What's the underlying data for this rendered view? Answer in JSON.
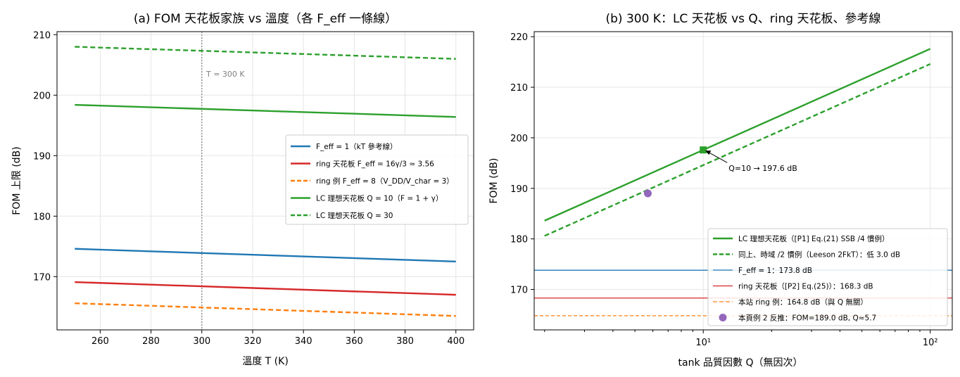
{
  "chart_data": [
    {
      "type": "line",
      "title": "(a) FOM 天花板家族 vs 溫度（各 F_eff 一條線）",
      "xlabel": "溫度 T (K)",
      "ylabel": "FOM 上限 (dB)",
      "xlim": [
        243,
        407
      ],
      "ylim": [
        161.2,
        210.5
      ],
      "xticks": [
        260,
        280,
        300,
        320,
        340,
        360,
        380,
        400
      ],
      "yticks": [
        170,
        180,
        190,
        200,
        210
      ],
      "grid": true,
      "legend_position": "center-right",
      "vline": {
        "x": 300,
        "label": "T = 300 K",
        "color": "#808080"
      },
      "series": [
        {
          "name": "F_eff = 1（kT 參考線）",
          "color": "#1f77b4",
          "style": "solid",
          "x": [
            250,
            400
          ],
          "y": [
            174.6,
            172.5
          ]
        },
        {
          "name": "ring 天花板 F_eff = 16γ/3 ≈ 3.56",
          "color": "#d62728",
          "style": "solid",
          "x": [
            250,
            400
          ],
          "y": [
            169.1,
            167.0
          ]
        },
        {
          "name": "ring 例 F_eff = 8（V_DD/V_char = 3）",
          "color": "#ff7f0e",
          "style": "dashed",
          "x": [
            250,
            400
          ],
          "y": [
            165.6,
            163.5
          ]
        },
        {
          "name": "LC 理想天花板 Q = 10（F = 1 + γ）",
          "color": "#2ca02c",
          "style": "solid",
          "x": [
            250,
            400
          ],
          "y": [
            198.4,
            196.4
          ]
        },
        {
          "name": "LC 理想天花板 Q = 30",
          "color": "#2ca02c",
          "style": "dashed",
          "x": [
            250,
            400
          ],
          "y": [
            208.0,
            206.0
          ]
        }
      ]
    },
    {
      "type": "line",
      "title": "(b) 300 K：LC 天花板 vs Q、ring 天花板、參考線",
      "xlabel": "tank 品質因數 Q（無因次）",
      "ylabel": "FOM (dB)",
      "xscale": "log",
      "xlim": [
        1.8,
        125
      ],
      "ylim": [
        162.0,
        221.0
      ],
      "xticks": [
        {
          "value": 10,
          "label": "10¹"
        },
        {
          "value": 100,
          "label": "10²"
        }
      ],
      "yticks": [
        170,
        180,
        190,
        200,
        210,
        220
      ],
      "grid": true,
      "legend_position": "lower-right",
      "annotation": {
        "text": "Q=10 → 197.6 dB",
        "point": [
          10,
          197.6
        ]
      },
      "series": [
        {
          "name": "LC 理想天花板（[P1] Eq.(21) SSB /4 慣例）",
          "color": "#2ca02c",
          "style": "solid",
          "x": [
            2,
            10,
            100
          ],
          "y": [
            183.6,
            197.6,
            217.6
          ]
        },
        {
          "name": "同上、時域 /2 慣例（Leeson 2FkT）：低 3.0 dB",
          "color": "#2ca02c",
          "style": "dashed",
          "x": [
            2,
            100
          ],
          "y": [
            180.6,
            214.6
          ]
        },
        {
          "name": "F_eff = 1：173.8 dB",
          "color": "#1f77b4",
          "style": "hline",
          "y": 173.8
        },
        {
          "name": "ring 天花板（[P2] Eq.(25)）：168.3 dB",
          "color": "#d62728",
          "style": "hline",
          "y": 168.3
        },
        {
          "name": "本站 ring 例：164.8 dB（與 Q 無關）",
          "color": "#ff7f0e",
          "style": "hline-dashed",
          "y": 164.8
        },
        {
          "name": "本頁例 2 反推：FOM=189.0 dB, Q≈5.7",
          "color": "#9467bd",
          "style": "point",
          "x": [
            5.7
          ],
          "y": [
            189.0
          ]
        }
      ]
    }
  ]
}
